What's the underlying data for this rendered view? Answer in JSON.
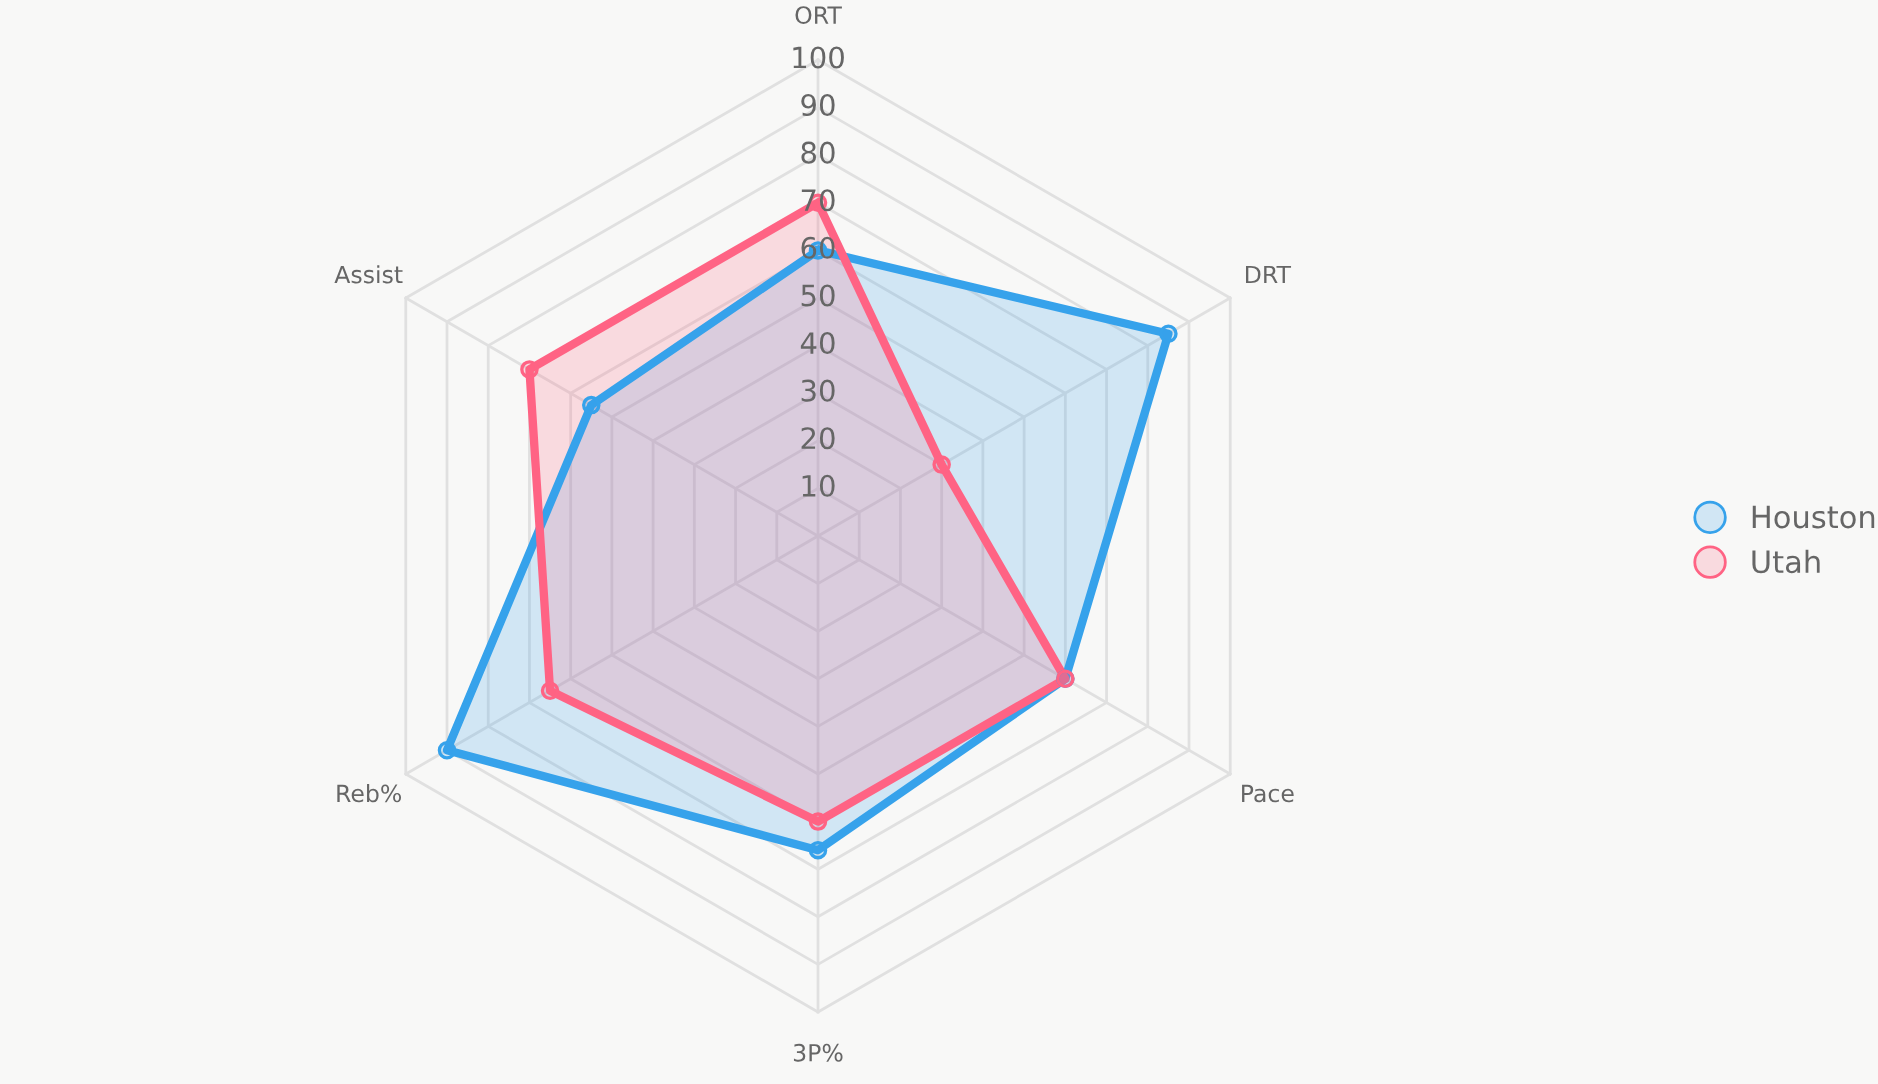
{
  "chart_data": {
    "type": "radar",
    "categories": [
      "ORT",
      "DRT",
      "Pace",
      "3P%",
      "Reb%",
      "Assist"
    ],
    "series": [
      {
        "name": "Houston",
        "color": "#36a2eb",
        "values": [
          60,
          85,
          60,
          66,
          90,
          55
        ]
      },
      {
        "name": "Utah",
        "color": "#ff6384",
        "values": [
          70,
          30,
          60,
          60,
          65,
          70
        ]
      }
    ],
    "ylim": [
      0,
      100
    ],
    "yticks": [
      10,
      20,
      30,
      40,
      50,
      60,
      70,
      80,
      90,
      100
    ],
    "grid": true,
    "legend": "right",
    "marker": "circle"
  }
}
